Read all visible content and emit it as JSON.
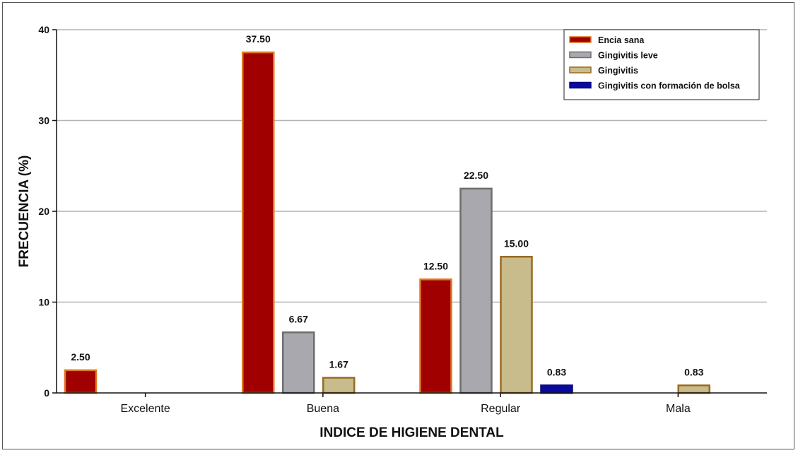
{
  "chart_data": {
    "type": "bar",
    "categories": [
      "Excelente",
      "Buena",
      "Regular",
      "Mala"
    ],
    "series": [
      {
        "name": "Encia sana",
        "values": [
          2.5,
          37.5,
          12.5,
          null
        ],
        "color": "#a00000",
        "stroke": "#e07820"
      },
      {
        "name": "Gingivitis leve",
        "values": [
          null,
          6.67,
          22.5,
          null
        ],
        "color": "#a8a8ae",
        "stroke": "#6e6e6e"
      },
      {
        "name": "Gingivitis",
        "values": [
          null,
          1.67,
          15.0,
          0.83
        ],
        "color": "#c8bc8c",
        "stroke": "#9a6a20"
      },
      {
        "name": "Gingivitis con formación de bolsa",
        "values": [
          null,
          null,
          0.83,
          null
        ],
        "color": "#0a0aa0",
        "stroke": "#0a0a80"
      }
    ],
    "data_labels": [
      [
        "2.50",
        null,
        null,
        null
      ],
      [
        "37.50",
        "6.67",
        "1.67",
        null
      ],
      [
        "12.50",
        "22.50",
        "15.00",
        "0.83"
      ],
      [
        null,
        null,
        "0.83",
        null
      ]
    ],
    "xlabel": "INDICE DE HIGIENE DENTAL",
    "ylabel": "FRECUENCIA (%)",
    "ylim": [
      0,
      40
    ],
    "yticks": [
      "0",
      "10",
      "20",
      "30",
      "40"
    ],
    "grid": true,
    "legend_position": "top-right"
  }
}
